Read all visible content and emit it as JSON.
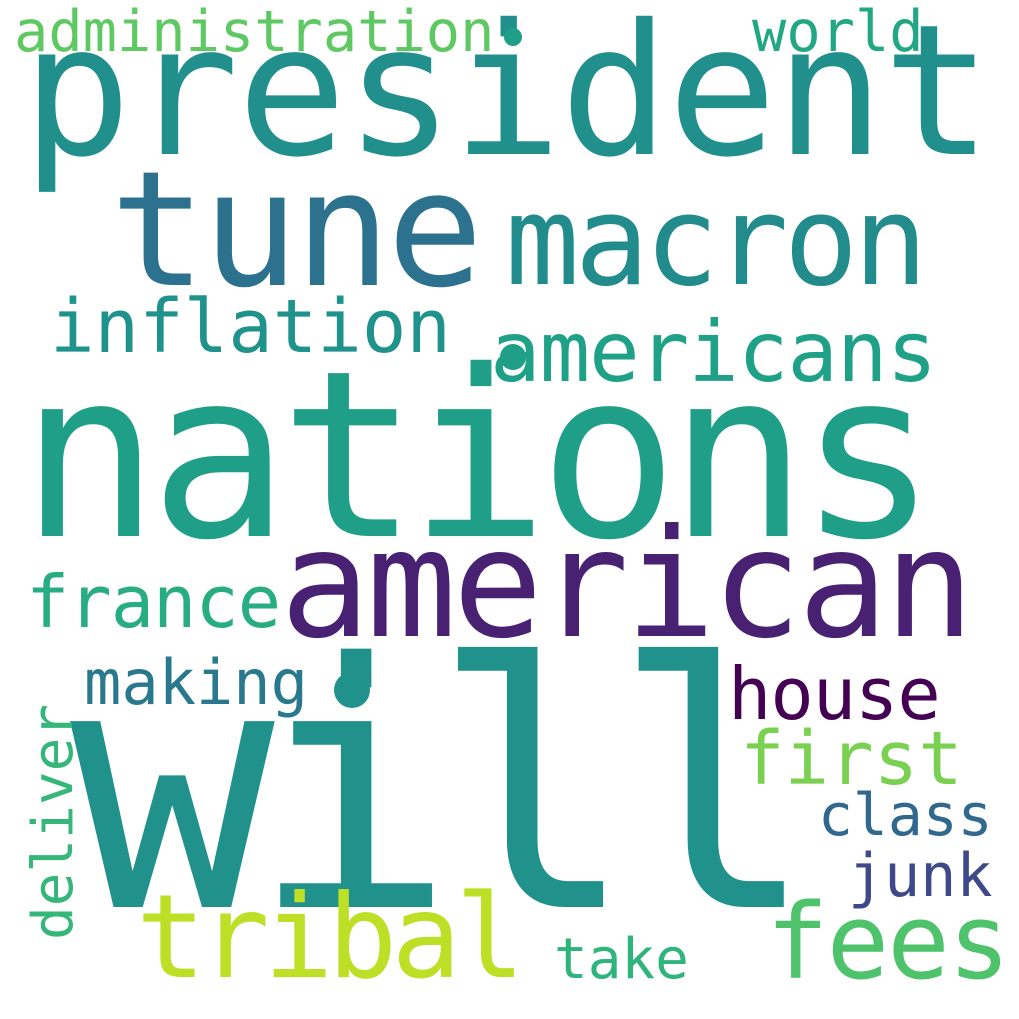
{
  "words": {
    "administration": {
      "text": "administration",
      "color": "#5ec962"
    },
    "president": {
      "text": "president",
      "color": "#21908d"
    },
    "world": {
      "text": "world",
      "color": "#22a785"
    },
    "tune": {
      "text": "tune",
      "color": "#2c728e"
    },
    "macron": {
      "text": "macron",
      "color": "#228c8d"
    },
    "inflation": {
      "text": "inflation",
      "color": "#20928c"
    },
    "americans": {
      "text": "americans",
      "color": "#1fa188"
    },
    "nations": {
      "text": "nations",
      "color": "#1f9f88"
    },
    "american": {
      "text": "american",
      "color": "#482173"
    },
    "france": {
      "text": "france",
      "color": "#27ad81"
    },
    "making": {
      "text": "making",
      "color": "#2a788e"
    },
    "house": {
      "text": "house",
      "color": "#440154"
    },
    "will": {
      "text": "will",
      "color": "#21918c"
    },
    "first": {
      "text": "first",
      "color": "#7ad151"
    },
    "deliver": {
      "text": "deliver",
      "color": "#35b779"
    },
    "class": {
      "text": "class",
      "color": "#31688e"
    },
    "junk": {
      "text": "junk",
      "color": "#3e4989"
    },
    "tribal": {
      "text": "tribal",
      "color": "#bddf26"
    },
    "take": {
      "text": "take",
      "color": "#2fb47c"
    },
    "fees": {
      "text": "fees",
      "color": "#4ec36b"
    }
  },
  "dots": {
    "dot1": {
      "color": "#1f9f88"
    },
    "dot2": {
      "color": "#1f9f88"
    },
    "dot3": {
      "color": "#21918c"
    }
  }
}
